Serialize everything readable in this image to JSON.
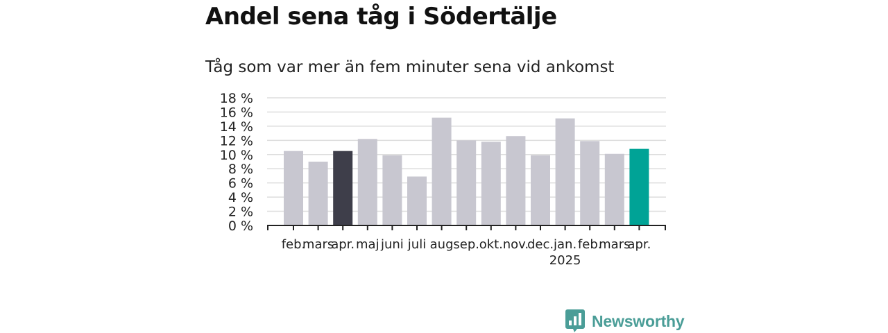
{
  "title": "Andel sena tåg i Södertälje",
  "subtitle": "Tåg som var mer än fem minuter sena vid ankomst",
  "brand": {
    "name": "Newsworthy",
    "icon": "newsworthy-logo-icon",
    "color": "#4a9d97"
  },
  "chart_data": {
    "type": "bar",
    "categories": [
      "feb.",
      "mars",
      "apr.",
      "maj",
      "juni",
      "juli",
      "aug",
      "sep.",
      "okt.",
      "nov.",
      "dec.",
      "jan.",
      "feb.",
      "mars",
      "apr."
    ],
    "year_label": {
      "category_index": 11,
      "text": "2025"
    },
    "values": [
      10.5,
      9.0,
      10.5,
      12.2,
      9.9,
      6.9,
      15.2,
      12.0,
      11.8,
      12.6,
      9.9,
      15.1,
      11.9,
      10.1,
      10.8
    ],
    "bar_colors": [
      "#c8c7d0",
      "#c8c7d0",
      "#3e3e4a",
      "#c8c7d0",
      "#c8c7d0",
      "#c8c7d0",
      "#c8c7d0",
      "#c8c7d0",
      "#c8c7d0",
      "#c8c7d0",
      "#c8c7d0",
      "#c8c7d0",
      "#c8c7d0",
      "#c8c7d0",
      "#00a396"
    ],
    "ylim": [
      0,
      18
    ],
    "y_ticks": [
      0,
      2,
      4,
      6,
      8,
      10,
      12,
      14,
      16,
      18
    ],
    "y_tick_labels": [
      "0 %",
      "2 %",
      "4 %",
      "6 %",
      "8 %",
      "10 %",
      "12 %",
      "14 %",
      "16 %",
      "18 %"
    ],
    "grid": true
  }
}
